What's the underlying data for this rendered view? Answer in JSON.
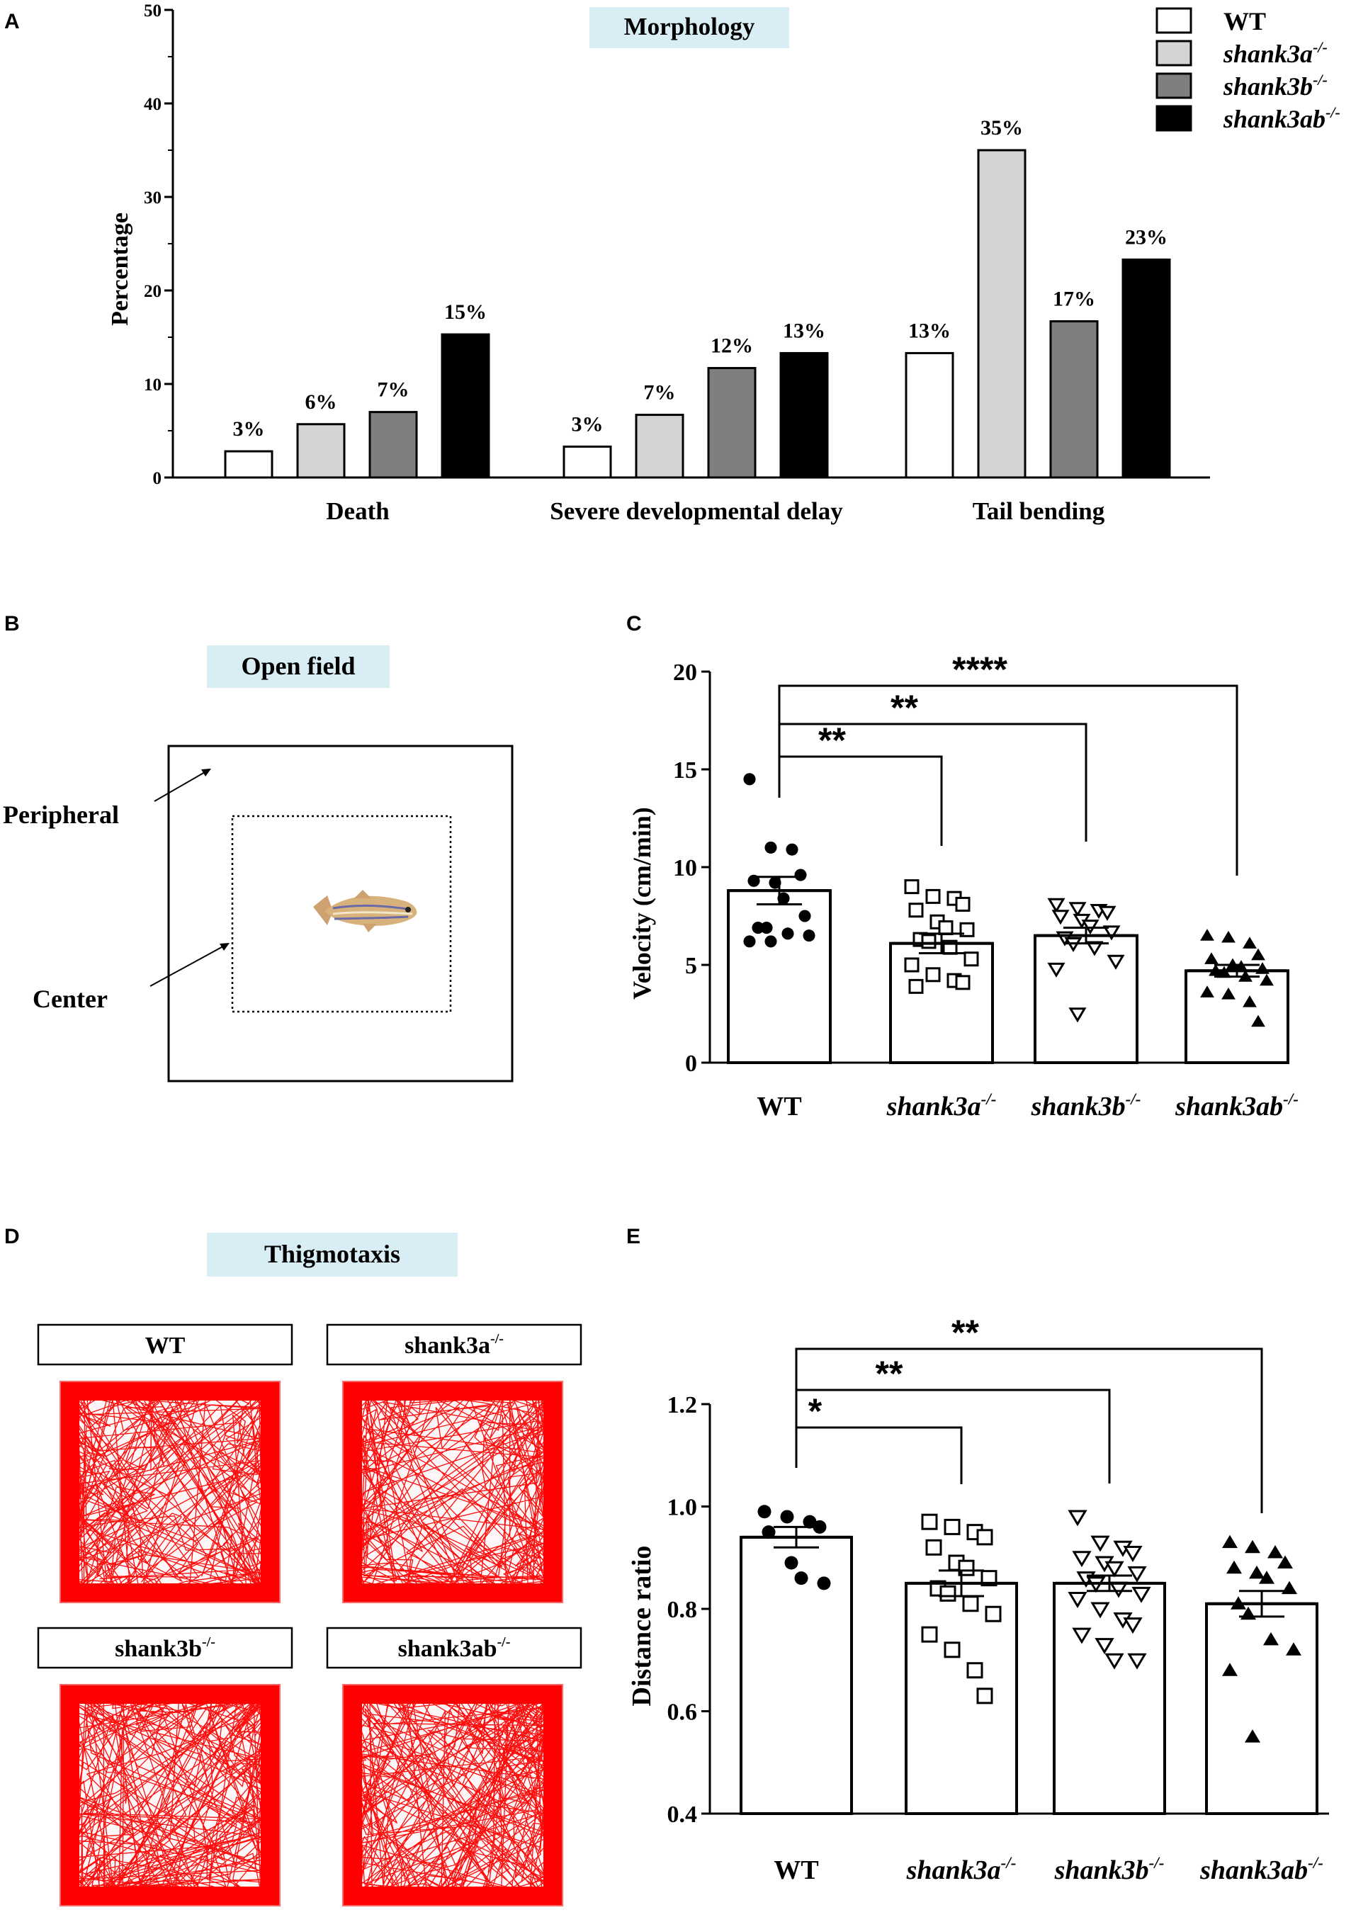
{
  "panel_letters": {
    "A": "A",
    "B": "B",
    "C": "C",
    "D": "D",
    "E": "E"
  },
  "legend": [
    {
      "label_main": "WT",
      "label_sup": "",
      "color": "#ffffff"
    },
    {
      "label_main": "shank3a",
      "label_sup": "-/-",
      "color": "#d4d4d4"
    },
    {
      "label_main": "shank3b",
      "label_sup": "-/-",
      "color": "#7f7f7f"
    },
    {
      "label_main": "shank3ab",
      "label_sup": "-/-",
      "color": "#000000"
    }
  ],
  "open_field": {
    "title": "Open field",
    "peripheral_label": "Peripheral",
    "center_label": "Center"
  },
  "thigmotaxis": {
    "title": "Thigmotaxis",
    "tracks": [
      {
        "main": "WT",
        "sup": ""
      },
      {
        "main": "shank3a",
        "sup": "-/-"
      },
      {
        "main": "shank3b",
        "sup": "-/-"
      },
      {
        "main": "shank3ab",
        "sup": "-/-"
      }
    ],
    "track_color": "#ff0000"
  },
  "chart_data": [
    {
      "id": "A",
      "type": "bar",
      "title": "Morphology",
      "ylabel": "Percentage",
      "xlabel": "",
      "ylim": [
        0,
        50
      ],
      "yticks": [
        0,
        10,
        20,
        30,
        40,
        50
      ],
      "categories": [
        "Death",
        "Severe developmental delay",
        "Tail bending"
      ],
      "series": [
        {
          "name": "WT",
          "color": "#ffffff",
          "values": [
            2.8,
            3.3,
            13.3
          ],
          "labels": [
            "3%",
            "3%",
            "13%"
          ]
        },
        {
          "name": "shank3a-/-",
          "color": "#d4d4d4",
          "values": [
            5.7,
            6.7,
            35.0
          ],
          "labels": [
            "6%",
            "7%",
            "35%"
          ]
        },
        {
          "name": "shank3b-/-",
          "color": "#7f7f7f",
          "values": [
            7.0,
            11.7,
            16.7
          ],
          "labels": [
            "7%",
            "12%",
            "17%"
          ]
        },
        {
          "name": "shank3ab-/-",
          "color": "#000000",
          "values": [
            15.3,
            13.3,
            23.3
          ],
          "labels": [
            "15%",
            "13%",
            "23%"
          ]
        }
      ]
    },
    {
      "id": "C",
      "type": "bar",
      "title": "",
      "ylabel": "Velocity (cm/min)",
      "xlabel": "",
      "ylim": [
        0,
        20
      ],
      "yticks": [
        0,
        5,
        10,
        15,
        20
      ],
      "categories": [
        {
          "main": "WT",
          "sup": ""
        },
        {
          "main": "shank3a",
          "sup": "-/-"
        },
        {
          "main": "shank3b",
          "sup": "-/-"
        },
        {
          "main": "shank3ab",
          "sup": "-/-"
        }
      ],
      "values": [
        8.8,
        6.1,
        6.5,
        4.7
      ],
      "sem": [
        0.7,
        0.5,
        0.4,
        0.3
      ],
      "markers": [
        "circle",
        "square",
        "triangle-down",
        "triangle-up"
      ],
      "points": [
        [
          14.5,
          11.0,
          10.9,
          9.6,
          9.3,
          9.2,
          8.4,
          7.5,
          6.9,
          6.9,
          6.6,
          6.5,
          6.2,
          6.2
        ],
        [
          9.0,
          8.5,
          8.4,
          8.1,
          7.8,
          7.2,
          6.9,
          6.8,
          6.3,
          6.2,
          5.9,
          5.3,
          5.0,
          4.5,
          4.2,
          4.1,
          3.9
        ],
        [
          8.1,
          7.9,
          7.8,
          7.7,
          7.5,
          7.3,
          7.0,
          6.7,
          6.4,
          6.1,
          5.9,
          5.2,
          4.8,
          2.5
        ],
        [
          6.5,
          6.4,
          6.1,
          5.5,
          5.3,
          5.0,
          4.9,
          4.8,
          4.7,
          4.6,
          4.4,
          4.2,
          3.6,
          3.5,
          3.1,
          2.1
        ]
      ],
      "significance": [
        {
          "from": 0,
          "to": 1,
          "label": "**"
        },
        {
          "from": 0,
          "to": 2,
          "label": "**"
        },
        {
          "from": 0,
          "to": 3,
          "label": "****"
        }
      ]
    },
    {
      "id": "E",
      "type": "bar",
      "title": "",
      "ylabel": "Distance ratio",
      "xlabel": "",
      "ylim": [
        0.4,
        1.2
      ],
      "yticks": [
        0.4,
        0.6,
        0.8,
        1.0,
        1.2
      ],
      "ytick_labels": [
        "0.4",
        "0.6",
        "0.8",
        "1.0",
        "1.2"
      ],
      "categories": [
        {
          "main": "WT",
          "sup": ""
        },
        {
          "main": "shank3a",
          "sup": "-/-"
        },
        {
          "main": "shank3b",
          "sup": "-/-"
        },
        {
          "main": "shank3ab",
          "sup": "-/-"
        }
      ],
      "values": [
        0.94,
        0.85,
        0.85,
        0.81
      ],
      "sem": [
        0.02,
        0.025,
        0.015,
        0.025
      ],
      "markers": [
        "circle",
        "square",
        "triangle-down",
        "triangle-up"
      ],
      "points": [
        [
          0.99,
          0.98,
          0.97,
          0.96,
          0.95,
          0.89,
          0.86,
          0.85
        ],
        [
          0.97,
          0.96,
          0.95,
          0.94,
          0.92,
          0.89,
          0.88,
          0.86,
          0.84,
          0.83,
          0.81,
          0.79,
          0.75,
          0.72,
          0.68,
          0.63
        ],
        [
          0.98,
          0.93,
          0.92,
          0.91,
          0.9,
          0.89,
          0.88,
          0.87,
          0.86,
          0.85,
          0.84,
          0.83,
          0.82,
          0.8,
          0.78,
          0.77,
          0.75,
          0.73,
          0.7,
          0.7
        ],
        [
          0.93,
          0.92,
          0.91,
          0.89,
          0.88,
          0.87,
          0.86,
          0.84,
          0.81,
          0.79,
          0.74,
          0.72,
          0.68,
          0.55
        ]
      ],
      "significance": [
        {
          "from": 0,
          "to": 1,
          "label": "*"
        },
        {
          "from": 0,
          "to": 2,
          "label": "**"
        },
        {
          "from": 0,
          "to": 3,
          "label": "**"
        }
      ]
    }
  ]
}
